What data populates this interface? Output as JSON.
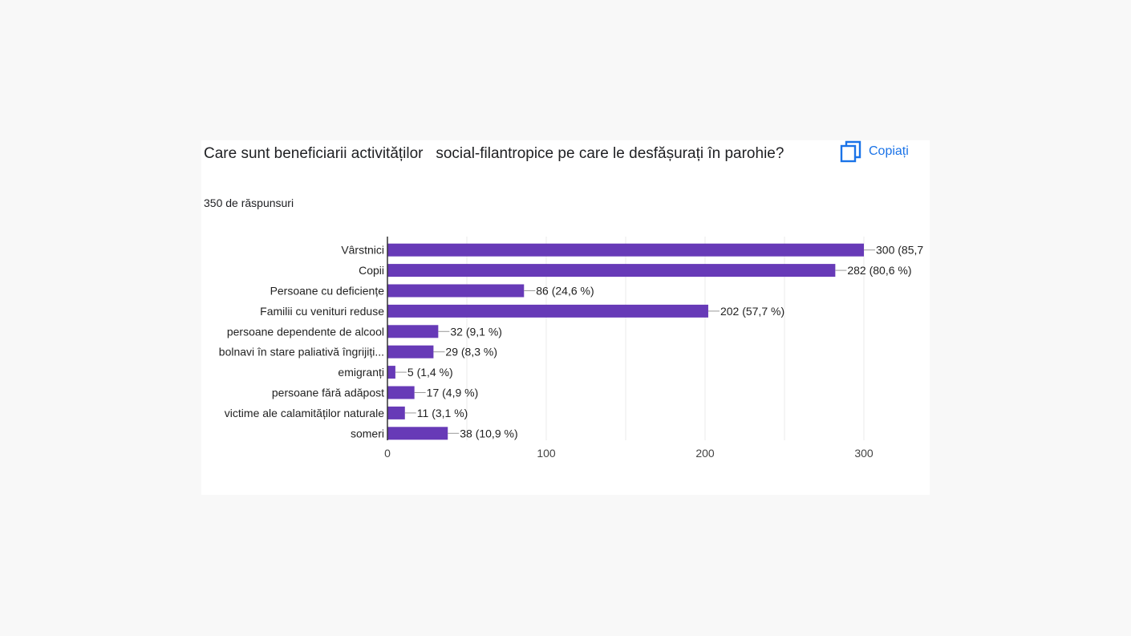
{
  "question": {
    "title": "Care sunt beneficiarii activităților   social-filantropice pe care le desfășurați în parohie?",
    "responses": "350 de răspunsuri"
  },
  "toolbar": {
    "copy_label": "Copiați",
    "copy_icon": "copy-icon"
  },
  "colors": {
    "bar": "#673ab7",
    "accent": "#1a73e8"
  },
  "chart_data": {
    "type": "bar",
    "orientation": "horizontal",
    "categories": [
      "Vârstnici",
      "Copii",
      "Persoane cu deficiențe",
      "Familii cu venituri reduse",
      "persoane dependente de alcool",
      "bolnavi în stare paliativă îngrijiți...",
      "emigranți",
      "persoane fără adăpost",
      "victime ale calamităților naturale",
      "someri"
    ],
    "values": [
      300,
      282,
      86,
      202,
      32,
      29,
      5,
      17,
      11,
      38
    ],
    "data_labels": [
      "300 (85,7",
      "282 (80,6 %)",
      "86 (24,6 %)",
      "202 (57,7 %)",
      "32 (9,1 %)",
      "29 (8,3 %)",
      "5 (1,4 %)",
      "17 (4,9 %)",
      "11 (3,1 %)",
      "38 (10,9 %)"
    ],
    "xlim": [
      0,
      300
    ],
    "xticks": [
      0,
      100,
      200,
      300
    ],
    "xtick_labels": [
      "0",
      "100",
      "200",
      "300"
    ],
    "grid": true
  }
}
